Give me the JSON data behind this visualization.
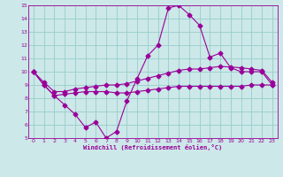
{
  "xlabel": "Windchill (Refroidissement éolien,°C)",
  "ylabel": "",
  "bg_color": "#cce8e8",
  "line_color": "#990099",
  "grid_color": "#99cccc",
  "xlim": [
    -0.5,
    23.5
  ],
  "ylim": [
    5,
    15
  ],
  "xticks": [
    0,
    1,
    2,
    3,
    4,
    5,
    6,
    7,
    8,
    9,
    10,
    11,
    12,
    13,
    14,
    15,
    16,
    17,
    18,
    19,
    20,
    21,
    22,
    23
  ],
  "yticks": [
    5,
    6,
    7,
    8,
    9,
    10,
    11,
    12,
    13,
    14,
    15
  ],
  "line1_x": [
    0,
    1,
    2,
    3,
    4,
    5,
    6,
    7,
    8,
    9,
    10,
    11,
    12,
    13,
    14,
    15,
    16,
    17,
    18,
    19,
    20,
    21,
    22,
    23
  ],
  "line1_y": [
    10.0,
    9.0,
    8.2,
    7.5,
    6.8,
    5.8,
    6.2,
    5.0,
    5.5,
    7.8,
    9.5,
    11.2,
    12.0,
    14.8,
    15.0,
    14.3,
    13.5,
    11.1,
    11.4,
    10.3,
    10.0,
    10.0,
    10.0,
    9.0
  ],
  "line2_x": [
    0,
    1,
    2,
    3,
    4,
    5,
    6,
    7,
    8,
    9,
    10,
    11,
    12,
    13,
    14,
    15,
    16,
    17,
    18,
    19,
    20,
    21,
    22,
    23
  ],
  "line2_y": [
    10.0,
    9.2,
    8.5,
    8.5,
    8.7,
    8.8,
    8.9,
    9.0,
    9.0,
    9.1,
    9.3,
    9.5,
    9.7,
    9.9,
    10.1,
    10.2,
    10.2,
    10.3,
    10.4,
    10.35,
    10.3,
    10.2,
    10.1,
    9.2
  ],
  "line3_x": [
    0,
    1,
    2,
    3,
    4,
    5,
    6,
    7,
    8,
    9,
    10,
    11,
    12,
    13,
    14,
    15,
    16,
    17,
    18,
    19,
    20,
    21,
    22,
    23
  ],
  "line3_y": [
    10.0,
    9.0,
    8.2,
    8.3,
    8.4,
    8.5,
    8.5,
    8.5,
    8.4,
    8.4,
    8.5,
    8.6,
    8.7,
    8.8,
    8.9,
    8.9,
    8.9,
    8.9,
    8.9,
    8.9,
    8.9,
    9.0,
    9.0,
    9.0
  ]
}
